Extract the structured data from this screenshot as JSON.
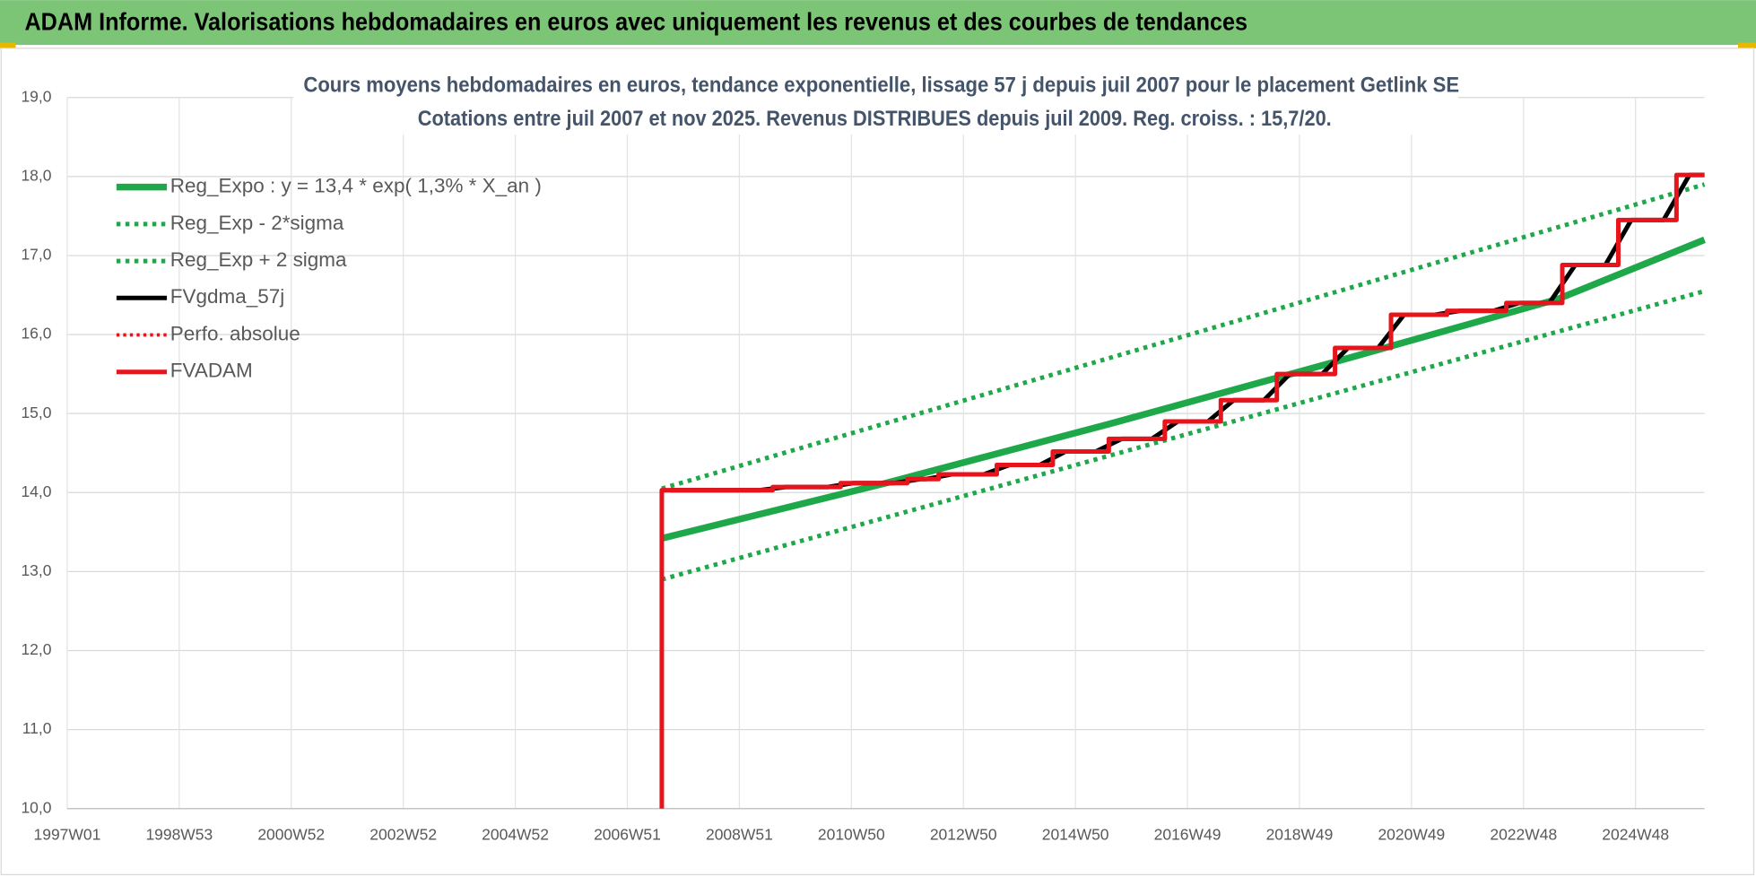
{
  "header": {
    "title": "ADAM Informe. Valorisations hebdomadaires en euros avec uniquement les revenus et des courbes de tendances"
  },
  "chart_data": {
    "type": "line",
    "title": "Cours moyens hebdomadaires en euros, tendance exponentielle, lissage 57 j depuis juil 2007 pour le placement Getlink SE",
    "subtitle": "Cotations entre juil 2007 et nov 2025. Revenus DISTRIBUES depuis juil 2009. Reg. croiss. : 15,7/20.",
    "xlim": [
      0,
      1520
    ],
    "xticks": [
      {
        "value": 0,
        "label": "1997W01"
      },
      {
        "value": 104,
        "label": "1998W53"
      },
      {
        "value": 208,
        "label": "2000W52"
      },
      {
        "value": 312,
        "label": "2002W52"
      },
      {
        "value": 416,
        "label": "2004W52"
      },
      {
        "value": 520,
        "label": "2006W51"
      },
      {
        "value": 624,
        "label": "2008W51"
      },
      {
        "value": 728,
        "label": "2010W50"
      },
      {
        "value": 832,
        "label": "2012W50"
      },
      {
        "value": 936,
        "label": "2014W50"
      },
      {
        "value": 1040,
        "label": "2016W49"
      },
      {
        "value": 1144,
        "label": "2018W49"
      },
      {
        "value": 1248,
        "label": "2020W49"
      },
      {
        "value": 1352,
        "label": "2022W48"
      },
      {
        "value": 1456,
        "label": "2024W48"
      }
    ],
    "ylim": [
      10,
      19
    ],
    "yticks": [
      {
        "value": 10,
        "label": "10,0"
      },
      {
        "value": 11,
        "label": "11,0"
      },
      {
        "value": 12,
        "label": "12,0"
      },
      {
        "value": 13,
        "label": "13,0"
      },
      {
        "value": 14,
        "label": "14,0"
      },
      {
        "value": 15,
        "label": "15,0"
      },
      {
        "value": 16,
        "label": "16,0"
      },
      {
        "value": 17,
        "label": "17,0"
      },
      {
        "value": 18,
        "label": "18,0"
      },
      {
        "value": 19,
        "label": "19,0"
      }
    ],
    "grid": true,
    "legend": "top-left",
    "series": [
      {
        "name": "Reg_Expo : y = 13,4 * exp( 1,3% *  X_an )",
        "color": "#1fa84a",
        "width": 6,
        "dash": "solid",
        "x": [
          552,
          760,
          968,
          1176,
          1384,
          1520
        ],
        "values": [
          13.42,
          14.12,
          14.87,
          15.65,
          16.45,
          17.2
        ]
      },
      {
        "name": "Reg_Exp - 2*sigma",
        "color": "#1fa84a",
        "width": 4,
        "dash": "dotted",
        "x": [
          552,
          1520
        ],
        "values": [
          12.9,
          16.55
        ]
      },
      {
        "name": "Reg_Exp + 2 sigma",
        "color": "#1fa84a",
        "width": 4,
        "dash": "dotted",
        "x": [
          552,
          1520
        ],
        "values": [
          14.05,
          17.9
        ]
      },
      {
        "name": "FVgdma_57j",
        "color": "#000000",
        "width": 4,
        "dash": "solid",
        "x": [
          560,
          643,
          667,
          706,
          730,
          768,
          792,
          797,
          821,
          851,
          875,
          903,
          927,
          955,
          979,
          1007,
          1031,
          1059,
          1083,
          1111,
          1135,
          1165,
          1189,
          1217,
          1241,
          1269,
          1293,
          1324,
          1348,
          1376,
          1400,
          1428,
          1452,
          1482,
          1506,
          1520
        ],
        "values": [
          14.03,
          14.03,
          14.07,
          14.07,
          14.12,
          14.12,
          14.17,
          14.17,
          14.23,
          14.23,
          14.35,
          14.35,
          14.52,
          14.52,
          14.68,
          14.68,
          14.9,
          14.9,
          15.17,
          15.17,
          15.5,
          15.5,
          15.83,
          15.83,
          16.25,
          16.25,
          16.3,
          16.3,
          16.4,
          16.4,
          16.88,
          16.88,
          17.45,
          17.45,
          18.02,
          18.02
        ]
      },
      {
        "name": "Perfo. absolue",
        "color": "#e8141b",
        "width": 3,
        "dash": "dotted",
        "x": [
          552,
          655,
          655,
          718,
          718,
          780,
          780,
          809,
          809,
          863,
          863,
          915,
          915,
          967,
          967,
          1019,
          1019,
          1071,
          1071,
          1123,
          1123,
          1177,
          1177,
          1229,
          1229,
          1281,
          1281,
          1336,
          1336,
          1388,
          1388,
          1440,
          1440,
          1494,
          1494,
          1520
        ],
        "values": [
          14.03,
          14.03,
          14.07,
          14.07,
          14.12,
          14.12,
          14.17,
          14.17,
          14.23,
          14.23,
          14.35,
          14.35,
          14.52,
          14.52,
          14.68,
          14.68,
          14.9,
          14.9,
          15.17,
          15.17,
          15.5,
          15.5,
          15.83,
          15.83,
          16.25,
          16.25,
          16.3,
          16.3,
          16.4,
          16.4,
          16.88,
          16.88,
          17.45,
          17.45,
          18.02,
          18.02
        ]
      },
      {
        "name": "FVADAM",
        "color": "#e8141b",
        "width": 4,
        "dash": "solid",
        "x": [
          552,
          552,
          655,
          655,
          718,
          718,
          780,
          780,
          809,
          809,
          863,
          863,
          915,
          915,
          967,
          967,
          1019,
          1019,
          1071,
          1071,
          1123,
          1123,
          1177,
          1177,
          1229,
          1229,
          1281,
          1281,
          1336,
          1336,
          1388,
          1388,
          1440,
          1440,
          1494,
          1494,
          1520
        ],
        "values": [
          10.0,
          14.03,
          14.03,
          14.07,
          14.07,
          14.12,
          14.12,
          14.17,
          14.17,
          14.23,
          14.23,
          14.35,
          14.35,
          14.52,
          14.52,
          14.68,
          14.68,
          14.9,
          14.9,
          15.17,
          15.17,
          15.5,
          15.5,
          15.83,
          15.83,
          16.25,
          16.25,
          16.3,
          16.3,
          16.4,
          16.4,
          16.88,
          16.88,
          17.45,
          17.45,
          18.02,
          18.02
        ]
      }
    ]
  }
}
